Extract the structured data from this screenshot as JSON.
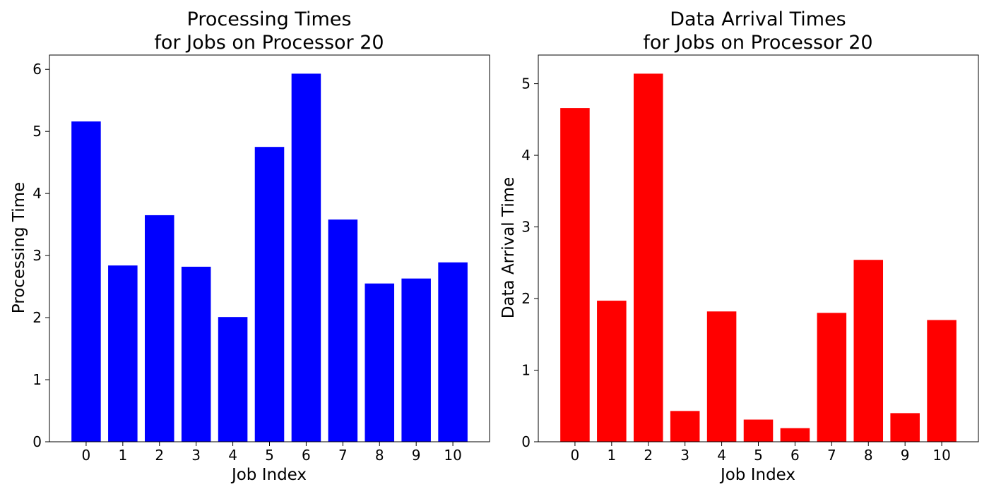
{
  "chart_data": [
    {
      "type": "bar",
      "title_lines": [
        "Processing Times",
        "for Jobs on Processor 20"
      ],
      "xlabel": "Job Index",
      "ylabel": "Processing Time",
      "categories": [
        "0",
        "1",
        "2",
        "3",
        "4",
        "5",
        "6",
        "7",
        "8",
        "9",
        "10"
      ],
      "values": [
        5.16,
        2.84,
        3.65,
        2.82,
        2.01,
        4.75,
        5.93,
        3.58,
        2.55,
        2.63,
        2.89
      ],
      "yticks": [
        "0",
        "1",
        "2",
        "3",
        "4",
        "5",
        "6"
      ],
      "ylim": [
        0,
        6.23
      ],
      "color": "#0000ff",
      "grid": false,
      "legend": "none"
    },
    {
      "type": "bar",
      "title_lines": [
        "Data Arrival Times",
        "for Jobs on Processor 20"
      ],
      "xlabel": "Job Index",
      "ylabel": "Data Arrival Time",
      "categories": [
        "0",
        "1",
        "2",
        "3",
        "4",
        "5",
        "6",
        "7",
        "8",
        "9",
        "10"
      ],
      "values": [
        4.66,
        1.97,
        5.14,
        0.43,
        1.82,
        0.31,
        0.19,
        1.8,
        2.54,
        0.4,
        1.7
      ],
      "yticks": [
        "0",
        "1",
        "2",
        "3",
        "4",
        "5"
      ],
      "ylim": [
        0,
        5.4
      ],
      "color": "#ff0000",
      "grid": false,
      "legend": "none"
    }
  ]
}
